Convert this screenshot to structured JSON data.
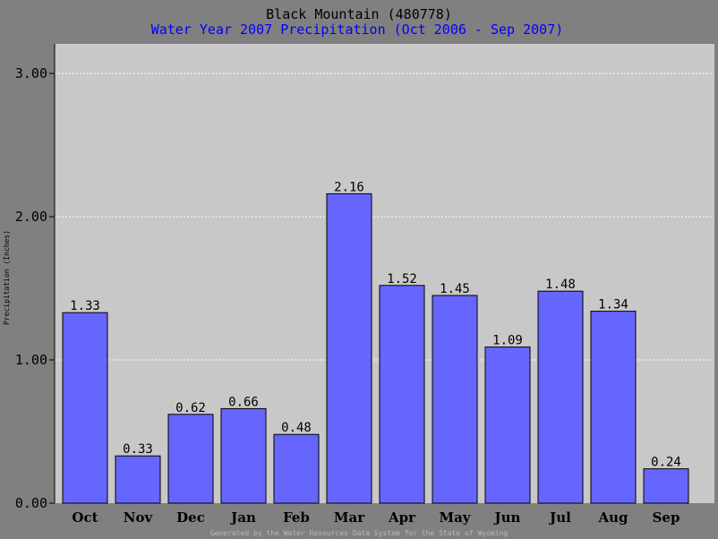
{
  "colors": {
    "background": "#808080",
    "plot_background": "#c8c8c8",
    "bar_fill": "#6666ff",
    "subtitle": "#0000ff",
    "footer": "#b8b8b8"
  },
  "footer": "Generated by the Water Resources Data System for the State of Wyoming",
  "chart_data": {
    "type": "bar",
    "title": "Black Mountain (480778)",
    "subtitle": "Water Year 2007 Precipitation (Oct 2006 - Sep 2007)",
    "xlabel": "",
    "ylabel": "Precipitation (Inches)",
    "categories": [
      "Oct",
      "Nov",
      "Dec",
      "Jan",
      "Feb",
      "Mar",
      "Apr",
      "May",
      "Jun",
      "Jul",
      "Aug",
      "Sep"
    ],
    "values": [
      1.33,
      0.33,
      0.62,
      0.66,
      0.48,
      2.16,
      1.52,
      1.45,
      1.09,
      1.48,
      1.34,
      0.24
    ],
    "value_labels": [
      "1.33",
      "0.33",
      "0.62",
      "0.66",
      "0.48",
      "2.16",
      "1.52",
      "1.45",
      "1.09",
      "1.48",
      "1.34",
      "0.24"
    ],
    "ylim": [
      0,
      3.0
    ],
    "yticks": [
      0,
      1,
      2,
      3
    ],
    "ytick_labels": [
      "0.00",
      "1.00",
      "2.00",
      "3.00"
    ],
    "grid": true,
    "legend": "none"
  }
}
